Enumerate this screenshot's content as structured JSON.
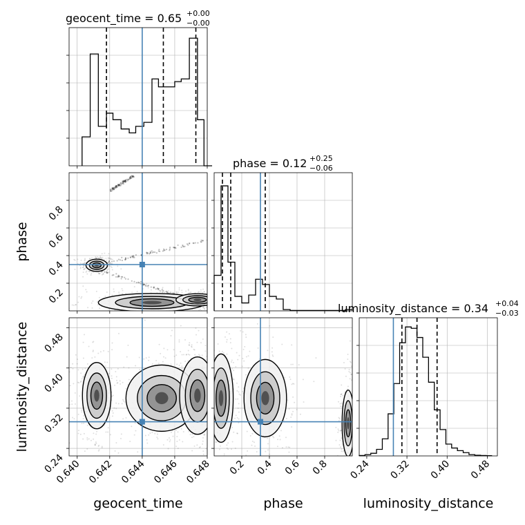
{
  "chart_data": {
    "type": "corner",
    "parameters": [
      "geocent_time",
      "phase",
      "luminosity_distance"
    ],
    "truth": {
      "geocent_time": 0.644,
      "phase": 0.335,
      "luminosity_distance": 0.293
    },
    "ranges": {
      "geocent_time": [
        0.6395,
        0.648
      ],
      "phase": [
        0.0,
        1.0
      ],
      "luminosity_distance": [
        0.225,
        0.5
      ]
    },
    "panel_ranges": {
      "phase_row": [
        0.0,
        1.0
      ],
      "luminosity_distance_row": [
        0.225,
        0.5
      ]
    },
    "ticks": {
      "geocent_time": {
        "values": [
          0.64,
          0.642,
          0.644,
          0.646,
          0.648
        ],
        "labels": [
          "0.640",
          "0.642",
          "0.644",
          "0.646",
          "0.648"
        ]
      },
      "phase": {
        "values": [
          0.2,
          0.4,
          0.6,
          0.8
        ],
        "labels": [
          "0.2",
          "0.4",
          "0.6",
          "0.8"
        ]
      },
      "luminosity_distance": {
        "values": [
          0.24,
          0.32,
          0.4,
          0.48
        ],
        "labels": [
          "0.24",
          "0.32",
          "0.40",
          "0.48"
        ]
      }
    },
    "axis_labels": {
      "x": [
        "geocent_time",
        "phase",
        "luminosity_distance"
      ],
      "y": [
        "phase",
        "luminosity_distance"
      ]
    },
    "titles": [
      {
        "name": "geocent_time",
        "prefix": "geocent_time = 0.65",
        "upper": "+0.00",
        "lower": "−0.00"
      },
      {
        "name": "phase",
        "prefix": "phase = 0.12",
        "upper": "+0.25",
        "lower": "−0.06"
      },
      {
        "name": "luminosity_distance",
        "prefix": "luminosity_distance = 0.34",
        "upper": "+0.04",
        "lower": "−0.03"
      }
    ],
    "quantiles": {
      "geocent_time": [
        0.6418,
        0.6453,
        0.6473
      ],
      "phase": [
        0.06,
        0.12,
        0.37
      ],
      "luminosity_distance": [
        0.31,
        0.34,
        0.38
      ]
    },
    "histograms": {
      "geocent_time": {
        "bins": [
          0.6403,
          0.6408,
          0.6413,
          0.6418,
          0.6422,
          0.6427,
          0.6432,
          0.6436,
          0.6441,
          0.6446,
          0.645,
          0.6455,
          0.646,
          0.6464,
          0.6469,
          0.6474,
          0.6478,
          0.6483
        ],
        "heights": [
          0.22,
          0.85,
          0.3,
          0.4,
          0.35,
          0.28,
          0.25,
          0.3,
          0.33,
          0.66,
          0.6,
          0.6,
          0.64,
          0.66,
          0.97,
          0.35,
          0.0
        ]
      },
      "phase": {
        "bins": [
          0.0,
          0.05,
          0.1,
          0.15,
          0.2,
          0.25,
          0.3,
          0.35,
          0.4,
          0.45,
          0.5,
          0.55,
          0.6,
          0.65,
          0.7,
          0.75,
          0.8,
          0.85,
          0.9,
          0.95,
          1.0
        ],
        "heights": [
          0.27,
          0.95,
          0.37,
          0.11,
          0.06,
          0.12,
          0.24,
          0.2,
          0.11,
          0.09,
          0.01,
          0.003,
          0.003,
          0.003,
          0.003,
          0.003,
          0.003,
          0.003,
          0.003,
          0.01
        ]
      },
      "luminosity_distance": {
        "bins": [
          0.225,
          0.2365,
          0.248,
          0.2595,
          0.271,
          0.2825,
          0.294,
          0.3055,
          0.317,
          0.3285,
          0.34,
          0.3515,
          0.363,
          0.3745,
          0.386,
          0.3975,
          0.409,
          0.4205,
          0.432,
          0.4435,
          0.455,
          0.4665,
          0.478,
          0.4895
        ],
        "heights": [
          0.003,
          0.01,
          0.02,
          0.05,
          0.13,
          0.32,
          0.55,
          0.86,
          0.98,
          0.97,
          0.9,
          0.75,
          0.56,
          0.35,
          0.2,
          0.09,
          0.06,
          0.04,
          0.025,
          0.01,
          0.005,
          0.003,
          0.002
        ]
      }
    },
    "density_regions": {
      "geocent_time_vs_phase": [
        {
          "x": 0.6412,
          "y": 0.33,
          "spread": [
            0.0003,
            0.02
          ]
        },
        {
          "x": 0.6446,
          "y": 0.06,
          "spread": [
            0.0015,
            0.03
          ]
        },
        {
          "x": 0.6474,
          "y": 0.08,
          "spread": [
            0.0006,
            0.02
          ]
        }
      ],
      "geocent_time_vs_luminosity_distance": [
        {
          "x": 0.6412,
          "y": 0.345,
          "spread": [
            0.0004,
            0.03
          ]
        },
        {
          "x": 0.6452,
          "y": 0.34,
          "spread": [
            0.001,
            0.03
          ]
        },
        {
          "x": 0.6474,
          "y": 0.345,
          "spread": [
            0.0005,
            0.035
          ]
        }
      ],
      "phase_vs_luminosity_distance": [
        {
          "x": 0.05,
          "y": 0.34,
          "spread": [
            0.04,
            0.04
          ]
        },
        {
          "x": 0.37,
          "y": 0.34,
          "spread": [
            0.07,
            0.035
          ]
        },
        {
          "x": 0.97,
          "y": 0.29,
          "spread": [
            0.02,
            0.03
          ]
        }
      ]
    },
    "grid": true,
    "truth_color": "#4682b4",
    "line_color": "#000000",
    "grid_color": "#b0b0b0"
  }
}
